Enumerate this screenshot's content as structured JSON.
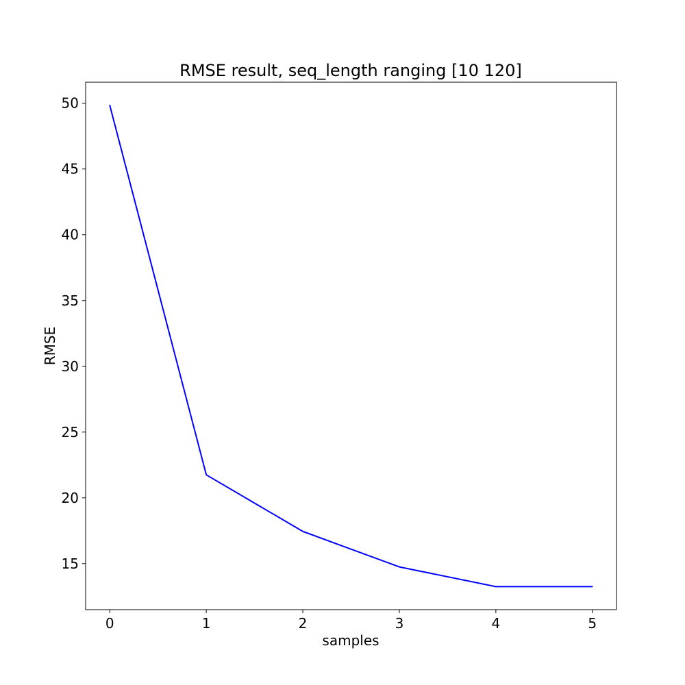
{
  "chart_data": {
    "type": "line",
    "title": "RMSE result, seq_length ranging [10 120]",
    "xlabel": "samples",
    "ylabel": "RMSE",
    "x": [
      0,
      1,
      2,
      3,
      4,
      5
    ],
    "series": [
      {
        "values": [
          49.85,
          21.75,
          17.45,
          14.75,
          13.25,
          13.25
        ],
        "color": "#0000ff"
      }
    ],
    "xlim": [
      -0.25,
      5.25
    ],
    "ylim": [
      11.5,
      51.6
    ],
    "xticks": [
      0,
      1,
      2,
      3,
      4,
      5
    ],
    "yticks": [
      15,
      20,
      25,
      30,
      35,
      40,
      45,
      50
    ],
    "grid": false
  }
}
